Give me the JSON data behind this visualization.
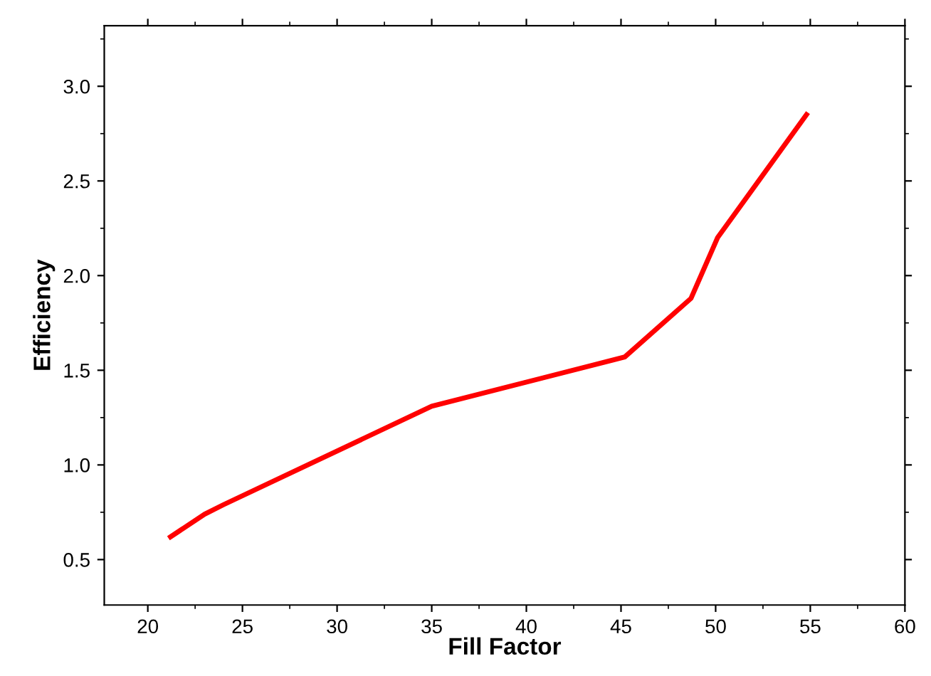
{
  "chart_data": {
    "type": "line",
    "xlabel": "Fill Factor",
    "ylabel": "Efficiency",
    "series": [
      {
        "color": "#ff0000",
        "x": [
          21.2,
          23,
          24,
          35,
          45.2,
          48.7,
          50.1,
          54.8
        ],
        "values": [
          0.62,
          0.74,
          0.79,
          1.31,
          1.57,
          1.88,
          2.2,
          2.85
        ]
      }
    ],
    "xlim": [
      17.7,
      60
    ],
    "ylim": [
      0.26,
      3.32
    ],
    "xticks": [
      20,
      25,
      30,
      35,
      40,
      45,
      50,
      55,
      60
    ],
    "yticks": [
      {
        "value": 0.5,
        "label": "0.5"
      },
      {
        "value": 1.0,
        "label": "1.0"
      },
      {
        "value": 1.5,
        "label": "1.5"
      },
      {
        "value": 2.0,
        "label": "2.0"
      },
      {
        "value": 2.5,
        "label": "2.5"
      },
      {
        "value": 3.0,
        "label": "3.0"
      }
    ],
    "grid": false,
    "legend": false,
    "marker": "none",
    "line_style": "solid"
  }
}
